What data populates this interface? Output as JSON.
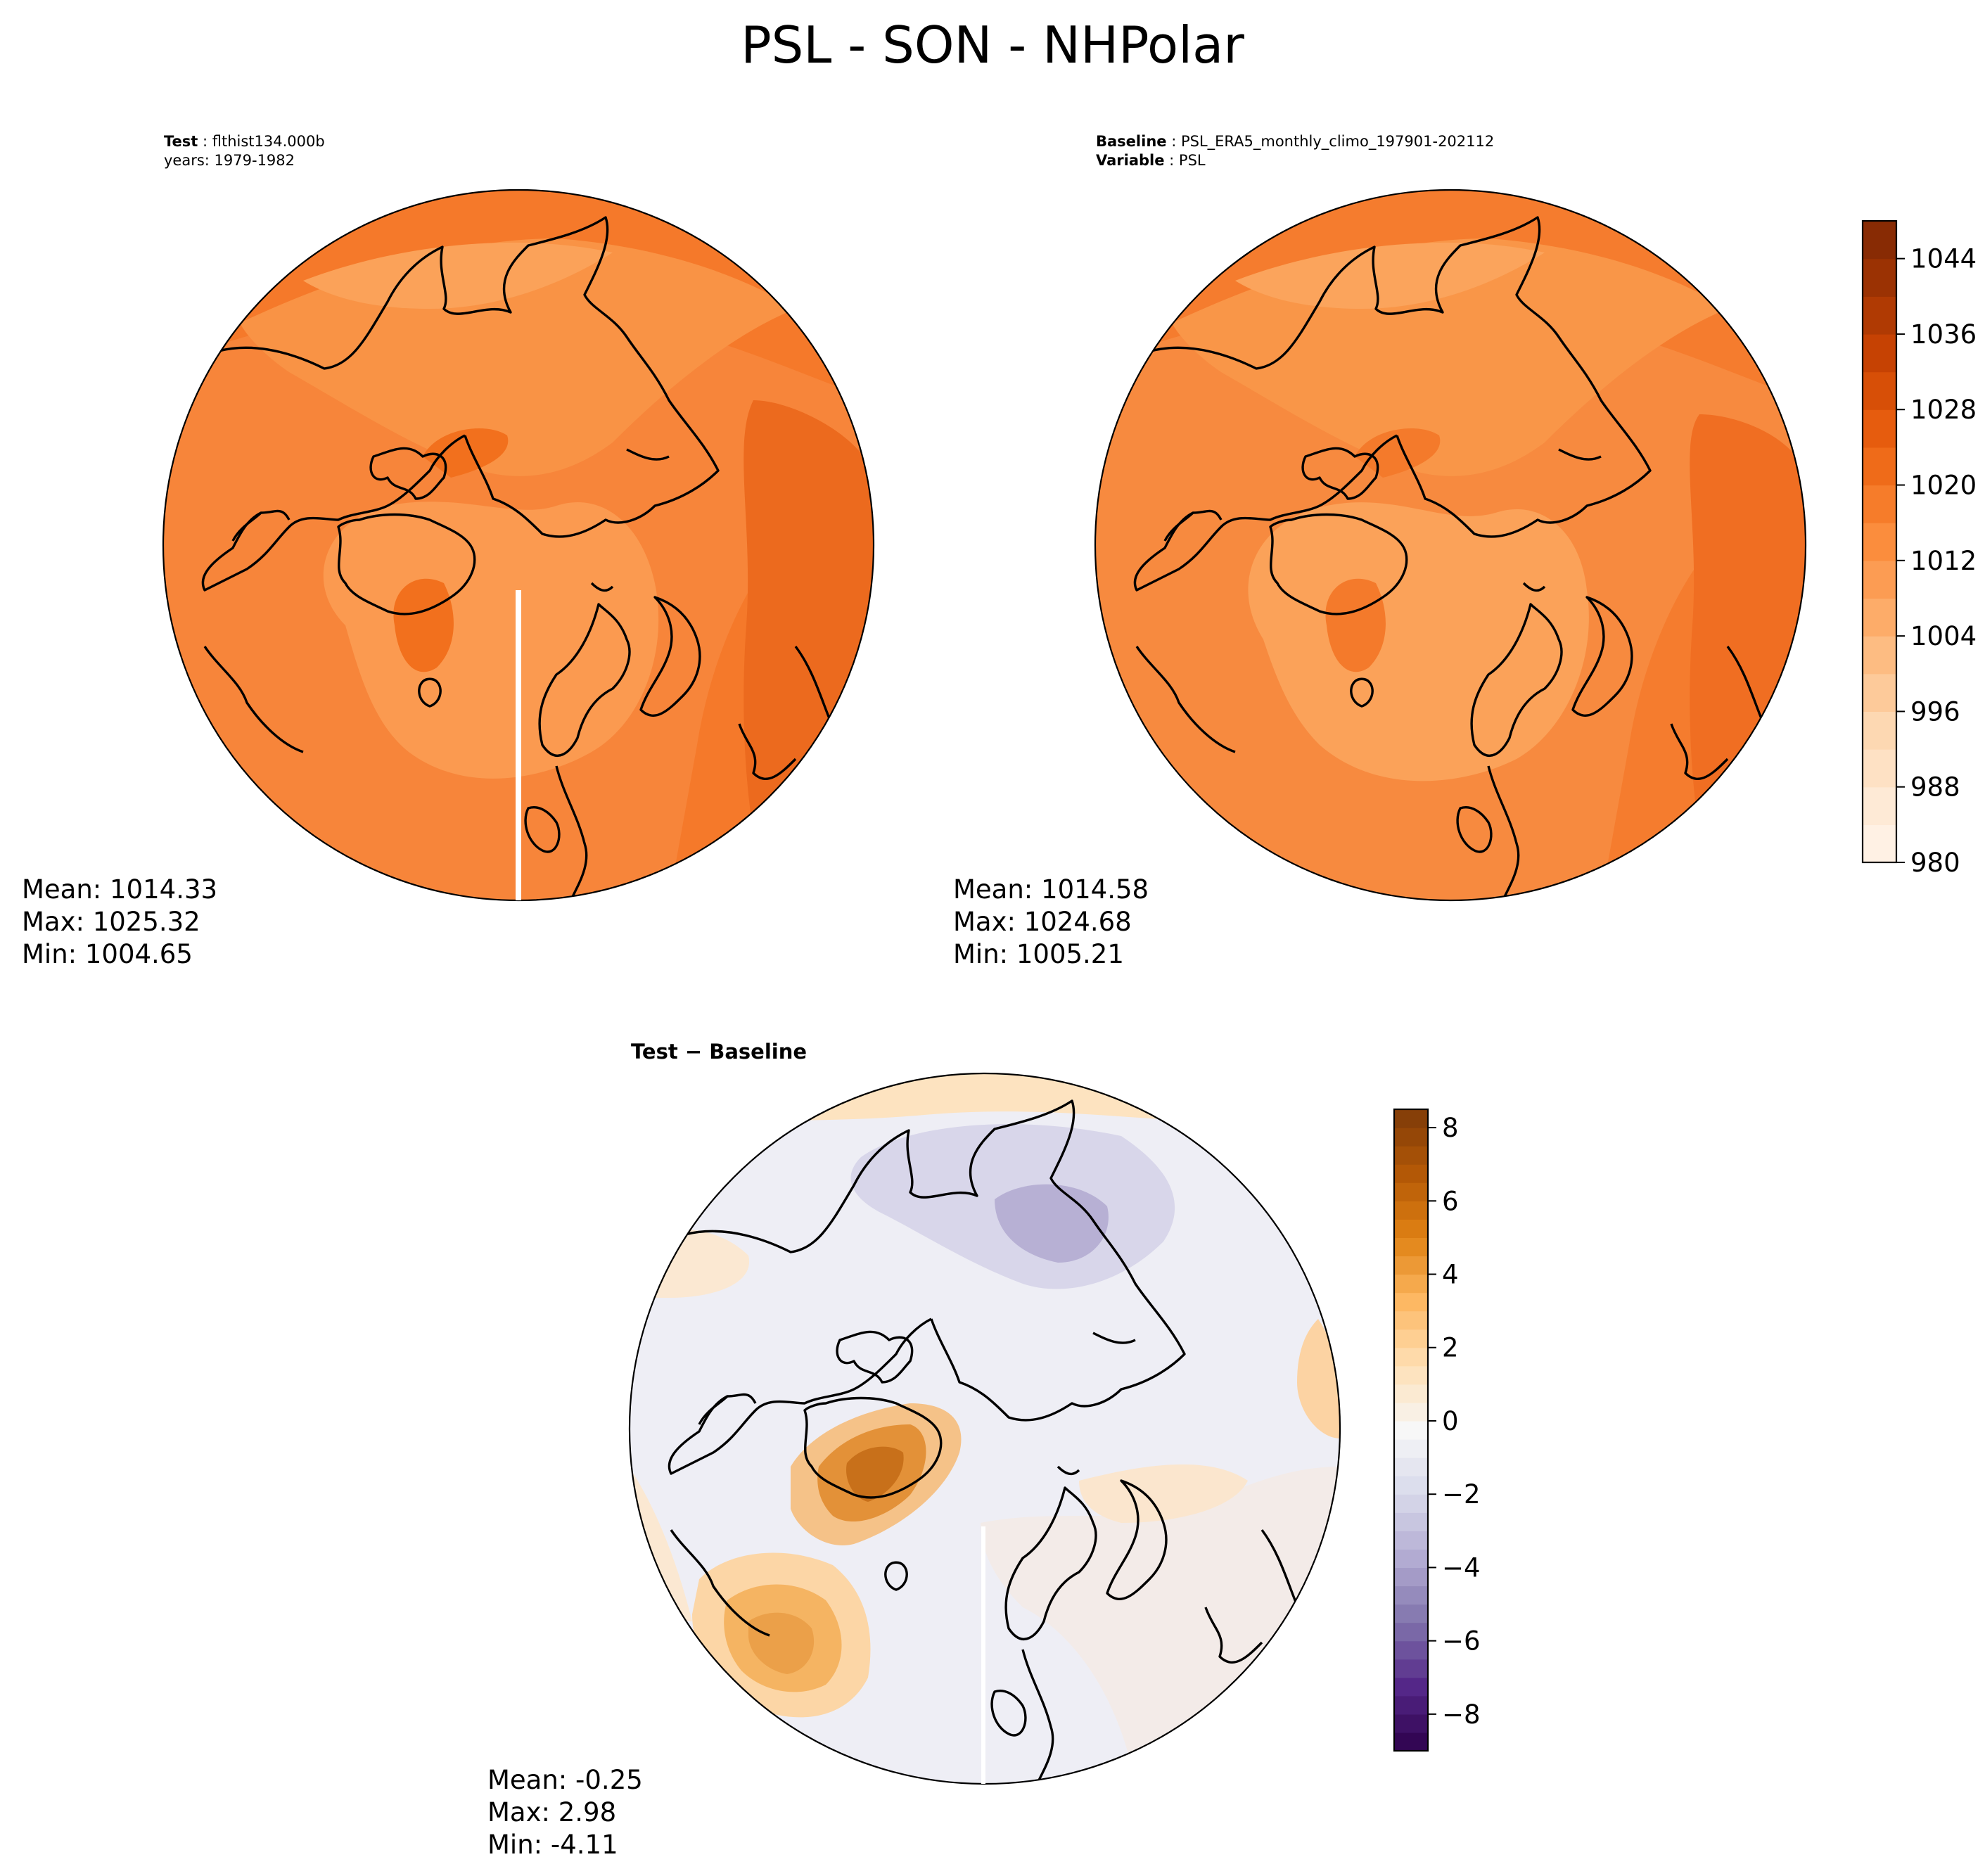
{
  "title": "PSL - SON - NHPolar",
  "panels": {
    "test": {
      "label_bold": "Test",
      "label_value": "flthist134.000b",
      "years": "years: 1979-1982",
      "stats": {
        "mean": "Mean: 1014.33",
        "max": "Max: 1025.32",
        "min": "Min: 1004.65"
      }
    },
    "baseline": {
      "label_bold": "Baseline",
      "label_value": "PSL_ERA5_monthly_climo_197901-202112",
      "variable_bold": "Variable",
      "variable_value": "PSL",
      "stats": {
        "mean": "Mean: 1014.58",
        "max": "Max: 1024.68",
        "min": "Min: 1005.21"
      }
    },
    "diff": {
      "title": "Test − Baseline",
      "stats": {
        "mean": "Mean: -0.25",
        "max": "Max:  2.98",
        "min": "Min: -4.11"
      }
    }
  },
  "chart_data": [
    {
      "type": "heatmap",
      "projection": "north-polar-stereographic",
      "name": "test",
      "title": "Test : flthist134.000b",
      "stats": {
        "mean": 1014.33,
        "max": 1025.32,
        "min": 1004.65
      },
      "colormap": "Oranges"
    },
    {
      "type": "heatmap",
      "projection": "north-polar-stereographic",
      "name": "baseline",
      "title": "Baseline : PSL_ERA5_monthly_climo_197901-202112",
      "stats": {
        "mean": 1014.58,
        "max": 1024.68,
        "min": 1005.21
      },
      "colormap": "Oranges",
      "colorbar": {
        "range": [
          980,
          1048
        ],
        "ticks": [
          980,
          988,
          996,
          1004,
          1012,
          1020,
          1028,
          1036,
          1044
        ],
        "tick_labels": [
          "980",
          "988",
          "996",
          "1004",
          "1012",
          "1020",
          "1028",
          "1036",
          "1044"
        ]
      }
    },
    {
      "type": "heatmap",
      "projection": "north-polar-stereographic",
      "name": "diff",
      "title": "Test − Baseline",
      "stats": {
        "mean": -0.25,
        "max": 2.98,
        "min": -4.11
      },
      "colormap": "PuOr_r",
      "colorbar": {
        "range": [
          -9,
          8.5
        ],
        "ticks": [
          -8,
          -6,
          -4,
          -2,
          0,
          2,
          4,
          6,
          8
        ],
        "tick_labels": [
          "−8",
          "−6",
          "−4",
          "−2",
          "0",
          "2",
          "4",
          "6",
          "8"
        ]
      }
    }
  ],
  "colors": {
    "oranges": [
      "#fff5eb",
      "#fee8d3",
      "#fdd9b4",
      "#fdc28c",
      "#fda762",
      "#fb8d3d",
      "#f2701d",
      "#e25609",
      "#c44103",
      "#9f3303",
      "#7f2704"
    ],
    "puor": [
      "#2d004b",
      "#542788",
      "#8073ac",
      "#b2abd2",
      "#d8daeb",
      "#f7f7f7",
      "#fee0b6",
      "#fdb863",
      "#e08214",
      "#b35806",
      "#7f3b08"
    ]
  }
}
